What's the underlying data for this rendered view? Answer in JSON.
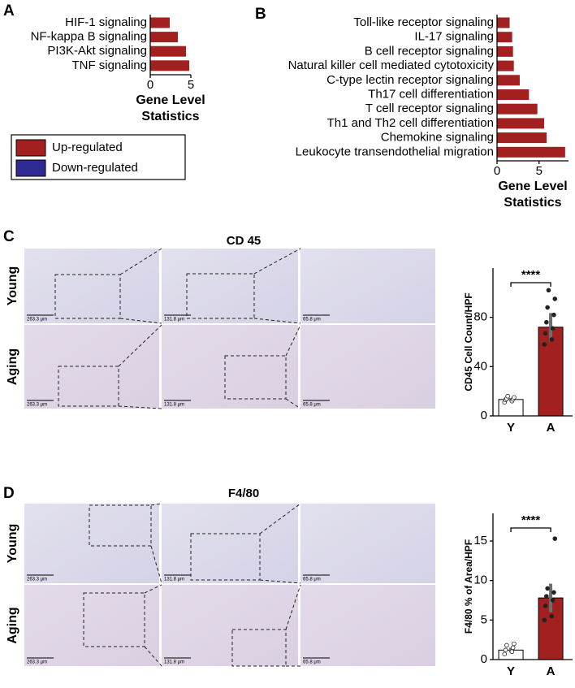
{
  "panel_labels": [
    "A",
    "B",
    "C",
    "D"
  ],
  "legend": [
    {
      "label": "Up-regulated",
      "color": "#a32020"
    },
    {
      "label": "Down-regulated",
      "color": "#302a94"
    }
  ],
  "micrographs": [
    {
      "title": "CD 45",
      "rows": [
        "Young",
        "Aging"
      ],
      "scale_bars": [
        "263.3 μm",
        "131.8 μm",
        "65.8 μm"
      ]
    },
    {
      "title": "F4/80",
      "rows": [
        "Young",
        "Aging"
      ],
      "scale_bars": [
        "263.3 μm",
        "131.8 μm",
        "65.8 μm"
      ]
    }
  ],
  "chart_data": [
    {
      "type": "barh",
      "categories": [
        "HIF-1 signaling",
        "NF-kappa B signaling",
        "PI3K-Akt signaling",
        "TNF signaling"
      ],
      "values": [
        2.4,
        3.4,
        4.4,
        4.8
      ],
      "color": "#a32020",
      "xlim": [
        0,
        5
      ],
      "xticks": [
        0,
        5
      ],
      "xlabel": [
        "Gene Level",
        "Statistics"
      ]
    },
    {
      "type": "barh",
      "categories": [
        "Toll-like receptor signaling",
        "IL-17 signaling",
        "B cell receptor signaling",
        "Natural killer cell mediated cytotoxicity",
        "C-type lectin receptor signaling",
        "Th17 cell differentiation",
        "T cell receptor signaling",
        "Th1 and Th2 cell differentiation",
        "Chemokine signaling",
        "Leukocyte transendothelial migration"
      ],
      "values": [
        1.5,
        1.8,
        1.9,
        2.0,
        2.7,
        3.8,
        4.8,
        5.6,
        5.9,
        8.1
      ],
      "color": "#a32020",
      "xlim": [
        0,
        8.5
      ],
      "xticks": [
        0,
        5
      ],
      "xlabel": [
        "Gene Level",
        "Statistics"
      ]
    },
    {
      "type": "bar",
      "categories": [
        "Y",
        "A"
      ],
      "values": [
        13.3,
        72
      ],
      "errors": [
        1.2,
        11.5
      ],
      "colors": [
        "#ffffff",
        "#a32020"
      ],
      "ylabel": "CD45 Cell Count/HPF",
      "ylim": [
        0,
        120
      ],
      "yticks": [
        0,
        40,
        80
      ],
      "significance": "****",
      "points": [
        [
          11,
          12,
          13,
          13.5,
          14,
          15,
          16
        ],
        [
          58,
          62,
          67,
          71,
          76,
          82,
          88,
          95,
          102
        ]
      ]
    },
    {
      "type": "bar",
      "categories": [
        "Y",
        "A"
      ],
      "values": [
        1.2,
        7.8
      ],
      "errors": [
        0.3,
        1.8
      ],
      "colors": [
        "#ffffff",
        "#a32020"
      ],
      "ylabel": "F4/80 % of Area/HPF",
      "ylim": [
        0,
        18.5
      ],
      "yticks": [
        0,
        5,
        10,
        15
      ],
      "significance": "****",
      "points": [
        [
          0.7,
          1.0,
          1.2,
          1.5,
          1.8,
          2.0
        ],
        [
          5.0,
          5.5,
          6.8,
          7.5,
          8.0,
          8.5,
          9.0,
          15.3
        ]
      ]
    }
  ]
}
